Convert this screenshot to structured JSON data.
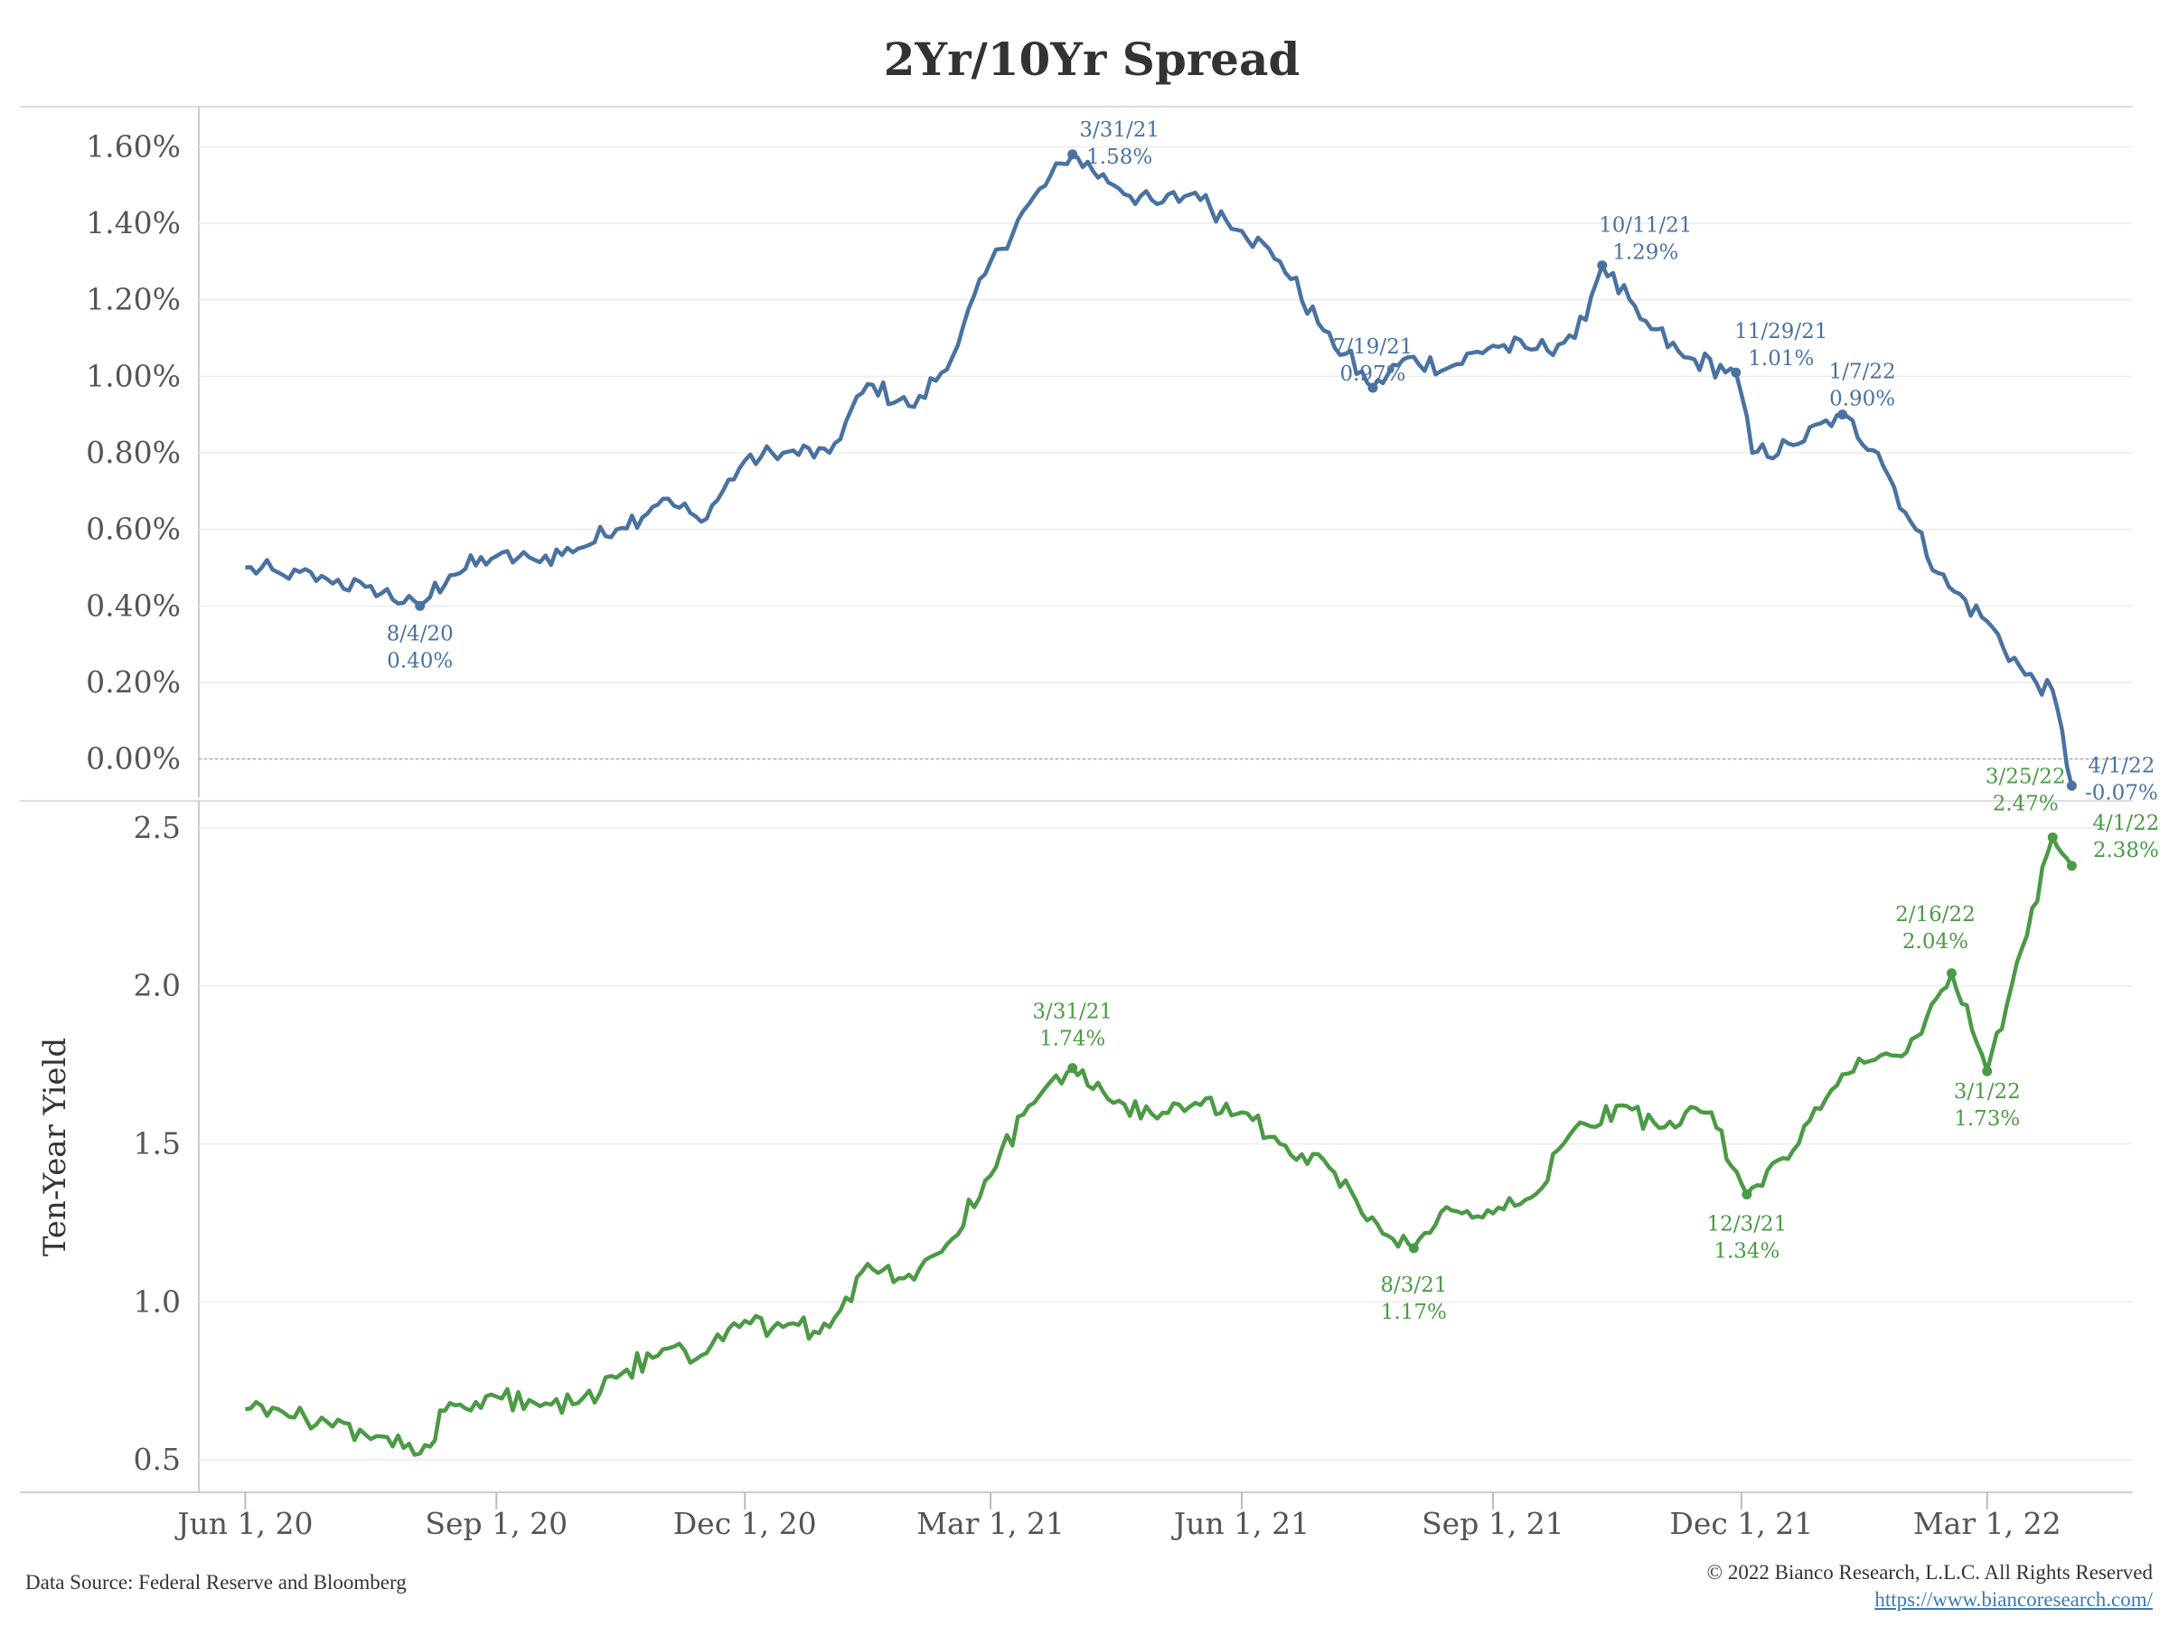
{
  "title": "2Yr/10Yr Spread",
  "footer": {
    "source": "Data Source: Federal Reserve and Bloomberg",
    "copyright": "© 2022 Bianco Research, L.L.C. All Rights Reserved",
    "url": "https://www.biancoresearch.com/"
  },
  "colors": {
    "spread": "#4a72a0",
    "yield": "#4c9a46",
    "grid": "#ececec",
    "zero": "#aaaaaa",
    "text": "#555555"
  },
  "chart_data": [
    {
      "type": "line",
      "title": "2Yr/10Yr Spread",
      "ylabel": "",
      "ylim": [
        -0.1,
        1.7
      ],
      "y_ticks": [
        0.0,
        0.2,
        0.4,
        0.6,
        0.8,
        1.0,
        1.2,
        1.4,
        1.6
      ],
      "y_tick_labels": [
        "0.00%",
        "0.20%",
        "0.40%",
        "0.60%",
        "0.80%",
        "1.00%",
        "1.20%",
        "1.40%",
        "1.60%"
      ],
      "reference_line": 0.0,
      "series": [
        {
          "x": [
            "2020-06-01",
            "2020-06-15",
            "2020-07-01",
            "2020-07-15",
            "2020-08-04",
            "2020-08-15",
            "2020-09-01",
            "2020-09-15",
            "2020-10-01",
            "2020-10-15",
            "2020-11-01",
            "2020-11-15",
            "2020-12-01",
            "2020-12-15",
            "2021-01-01",
            "2021-01-15",
            "2021-02-01",
            "2021-02-15",
            "2021-03-01",
            "2021-03-15",
            "2021-03-31",
            "2021-04-15",
            "2021-05-01",
            "2021-05-15",
            "2021-06-01",
            "2021-06-15",
            "2021-07-01",
            "2021-07-19",
            "2021-08-01",
            "2021-08-15",
            "2021-09-01",
            "2021-09-15",
            "2021-10-01",
            "2021-10-11",
            "2021-10-25",
            "2021-11-10",
            "2021-11-29",
            "2021-12-05",
            "2021-12-20",
            "2022-01-07",
            "2022-01-20",
            "2022-02-01",
            "2022-02-15",
            "2022-03-01",
            "2022-03-15",
            "2022-03-25",
            "2022-04-01"
          ],
          "y": [
            0.5,
            0.48,
            0.47,
            0.45,
            0.4,
            0.48,
            0.53,
            0.52,
            0.55,
            0.6,
            0.68,
            0.62,
            0.78,
            0.8,
            0.8,
            0.98,
            0.92,
            1.05,
            1.3,
            1.45,
            1.58,
            1.5,
            1.45,
            1.48,
            1.38,
            1.3,
            1.12,
            0.97,
            1.05,
            1.02,
            1.08,
            1.07,
            1.1,
            1.29,
            1.15,
            1.05,
            1.01,
            0.8,
            0.82,
            0.9,
            0.8,
            0.62,
            0.45,
            0.36,
            0.22,
            0.18,
            -0.07
          ]
        }
      ],
      "annotations": [
        {
          "date": "8/4/20",
          "value": "0.40%"
        },
        {
          "date": "3/31/21",
          "value": "1.58%"
        },
        {
          "date": "7/19/21",
          "value": "0.97%"
        },
        {
          "date": "10/11/21",
          "value": "1.29%"
        },
        {
          "date": "11/29/21",
          "value": "1.01%"
        },
        {
          "date": "1/7/22",
          "value": "0.90%"
        },
        {
          "date": "4/1/22",
          "value": "-0.07%"
        }
      ]
    },
    {
      "type": "line",
      "title": "",
      "ylabel": "Ten-Year Yield",
      "ylim": [
        0.4,
        2.58
      ],
      "y_ticks": [
        0.5,
        1.0,
        1.5,
        2.0,
        2.5
      ],
      "y_tick_labels": [
        "0.5",
        "1.0",
        "1.5",
        "2.0",
        "2.5"
      ],
      "series": [
        {
          "x": [
            "2020-06-01",
            "2020-06-15",
            "2020-07-01",
            "2020-07-15",
            "2020-08-04",
            "2020-08-15",
            "2020-09-01",
            "2020-09-15",
            "2020-10-01",
            "2020-10-15",
            "2020-11-01",
            "2020-11-15",
            "2020-12-01",
            "2020-12-15",
            "2021-01-01",
            "2021-01-15",
            "2021-02-01",
            "2021-02-15",
            "2021-03-01",
            "2021-03-15",
            "2021-03-31",
            "2021-04-15",
            "2021-05-01",
            "2021-05-15",
            "2021-06-01",
            "2021-06-15",
            "2021-07-01",
            "2021-07-15",
            "2021-08-03",
            "2021-08-15",
            "2021-09-01",
            "2021-09-15",
            "2021-10-01",
            "2021-10-20",
            "2021-11-01",
            "2021-11-20",
            "2021-12-03",
            "2021-12-20",
            "2022-01-07",
            "2022-01-25",
            "2022-02-05",
            "2022-02-16",
            "2022-03-01",
            "2022-03-10",
            "2022-03-25",
            "2022-04-01"
          ],
          "y": [
            0.66,
            0.65,
            0.62,
            0.58,
            0.52,
            0.68,
            0.7,
            0.68,
            0.68,
            0.76,
            0.85,
            0.83,
            0.94,
            0.92,
            0.92,
            1.12,
            1.07,
            1.2,
            1.4,
            1.62,
            1.74,
            1.63,
            1.58,
            1.63,
            1.6,
            1.5,
            1.45,
            1.28,
            1.17,
            1.3,
            1.28,
            1.33,
            1.55,
            1.62,
            1.55,
            1.6,
            1.34,
            1.48,
            1.72,
            1.78,
            1.85,
            2.04,
            1.73,
            2.0,
            2.47,
            2.38
          ]
        }
      ],
      "annotations": [
        {
          "date": "3/31/21",
          "value": "1.74%"
        },
        {
          "date": "8/3/21",
          "value": "1.17%"
        },
        {
          "date": "12/3/21",
          "value": "1.34%"
        },
        {
          "date": "2/16/22",
          "value": "2.04%"
        },
        {
          "date": "3/1/22",
          "value": "1.73%"
        },
        {
          "date": "3/25/22",
          "value": "2.47%"
        },
        {
          "date": "4/1/22",
          "value": "2.38%"
        }
      ]
    }
  ],
  "x_axis": {
    "range": [
      "2020-05-15",
      "2022-04-30"
    ],
    "ticks": [
      "2020-06-01",
      "2020-09-01",
      "2020-12-01",
      "2021-03-01",
      "2021-06-01",
      "2021-09-01",
      "2021-12-01",
      "2022-03-01"
    ],
    "tick_labels": [
      "Jun 1, 20",
      "Sep 1, 20",
      "Dec 1, 20",
      "Mar 1, 21",
      "Jun 1, 21",
      "Sep 1, 21",
      "Dec 1, 21",
      "Mar 1, 22"
    ]
  }
}
